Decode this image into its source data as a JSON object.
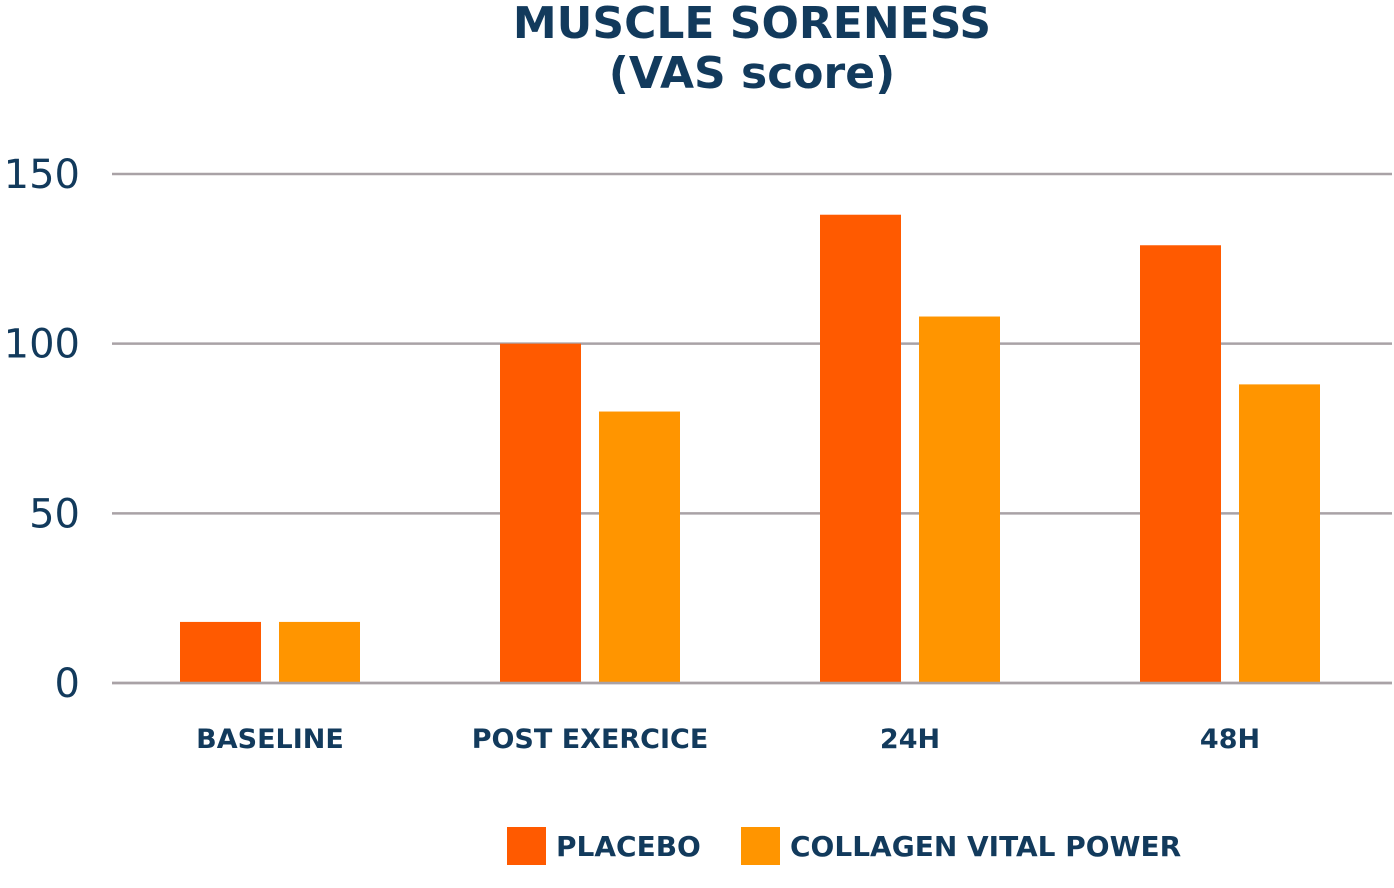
{
  "chart_data": {
    "type": "bar",
    "title": [
      "MUSCLE SORENESS",
      "(VAS score)"
    ],
    "categories": [
      "BASELINE",
      "POST EXERCICE",
      "24H",
      "48H"
    ],
    "series": [
      {
        "name": "PLACEBO",
        "values": [
          18,
          100,
          138,
          129
        ],
        "color": "#ff5a00"
      },
      {
        "name": "COLLAGEN VITAL POWER",
        "values": [
          18,
          80,
          108,
          88
        ],
        "color": "#ff9500"
      }
    ],
    "yticks": [
      0,
      50,
      100,
      150
    ],
    "ylim": [
      0,
      150
    ],
    "grid": true,
    "legend": "bottom"
  }
}
